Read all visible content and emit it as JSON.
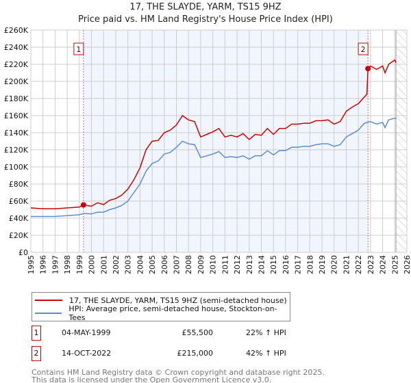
{
  "chart_data": {
    "type": "line",
    "title": "17, THE SLAYDE, YARM, TS15 9HZ",
    "subtitle": "Price paid vs. HM Land Registry's House Price Index (HPI)",
    "xlabel": "",
    "ylabel": "",
    "xlim": [
      1995,
      2026
    ],
    "ylim": [
      0,
      260000
    ],
    "grid": true,
    "x_ticks": [
      "1995",
      "1996",
      "1997",
      "1998",
      "1999",
      "2000",
      "2001",
      "2002",
      "2003",
      "2004",
      "2005",
      "2006",
      "2007",
      "2008",
      "2009",
      "2010",
      "2011",
      "2012",
      "2013",
      "2014",
      "2015",
      "2016",
      "2017",
      "2018",
      "2019",
      "2020",
      "2021",
      "2022",
      "2023",
      "2024",
      "2025",
      "2026"
    ],
    "y_ticks": [
      {
        "v": 0,
        "label": "£0"
      },
      {
        "v": 20000,
        "label": "£20K"
      },
      {
        "v": 40000,
        "label": "£40K"
      },
      {
        "v": 60000,
        "label": "£60K"
      },
      {
        "v": 80000,
        "label": "£80K"
      },
      {
        "v": 100000,
        "label": "£100K"
      },
      {
        "v": 120000,
        "label": "£120K"
      },
      {
        "v": 140000,
        "label": "£140K"
      },
      {
        "v": 160000,
        "label": "£160K"
      },
      {
        "v": 180000,
        "label": "£180K"
      },
      {
        "v": 200000,
        "label": "£200K"
      },
      {
        "v": 220000,
        "label": "£220K"
      },
      {
        "v": 240000,
        "label": "£240K"
      },
      {
        "v": 260000,
        "label": "£260K"
      }
    ],
    "shaded_range": [
      1999.34,
      2022.79
    ],
    "hatched_range": [
      2025.1,
      2026
    ],
    "series": [
      {
        "name": "17, THE SLAYDE, YARM, TS15 9HZ (semi-detached house)",
        "color": "#cc0000",
        "x": [
          1995,
          1996,
          1997,
          1998,
          1999,
          1999.34,
          2000,
          2000.5,
          2001,
          2001.5,
          2002,
          2002.5,
          2003,
          2003.5,
          2004,
          2004.5,
          2005,
          2005.5,
          2006,
          2006.5,
          2007,
          2007.5,
          2008,
          2008.5,
          2009,
          2009.5,
          2010,
          2010.5,
          2011,
          2011.5,
          2012,
          2012.5,
          2013,
          2013.5,
          2014,
          2014.5,
          2015,
          2015.5,
          2016,
          2016.5,
          2017,
          2017.5,
          2018,
          2018.5,
          2019,
          2019.5,
          2020,
          2020.5,
          2021,
          2021.5,
          2022,
          2022.7,
          2022.79,
          2023,
          2023.5,
          2024,
          2024.2,
          2024.5,
          2025,
          2025.1
        ],
        "y": [
          52000,
          51000,
          51000,
          52000,
          53000,
          55500,
          54000,
          58000,
          56000,
          61000,
          63000,
          67000,
          74000,
          85000,
          99000,
          120000,
          130000,
          131000,
          140000,
          143000,
          149000,
          160000,
          155000,
          153000,
          135000,
          138000,
          141000,
          145000,
          135000,
          137000,
          135000,
          139000,
          132000,
          138000,
          137000,
          145000,
          138000,
          145000,
          145000,
          150000,
          150000,
          151000,
          151000,
          154000,
          154000,
          155000,
          150000,
          153000,
          165000,
          170000,
          174000,
          185000,
          215000,
          218000,
          214000,
          218000,
          210000,
          220000,
          225000,
          222000
        ]
      },
      {
        "name": "HPI: Average price, semi-detached house, Stockton-on-Tees",
        "color": "#5b8dd6",
        "x": [
          1995,
          1996,
          1997,
          1998,
          1999,
          1999.34,
          2000,
          2000.5,
          2001,
          2001.5,
          2002,
          2002.5,
          2003,
          2003.5,
          2004,
          2004.5,
          2005,
          2005.5,
          2006,
          2006.5,
          2007,
          2007.5,
          2008,
          2008.5,
          2009,
          2009.5,
          2010,
          2010.5,
          2011,
          2011.5,
          2012,
          2012.5,
          2013,
          2013.5,
          2014,
          2014.5,
          2015,
          2015.5,
          2016,
          2016.5,
          2017,
          2017.5,
          2018,
          2018.5,
          2019,
          2019.5,
          2020,
          2020.5,
          2021,
          2021.5,
          2022,
          2022.5,
          2023,
          2023.5,
          2024,
          2024.2,
          2024.5,
          2025,
          2025.1
        ],
        "y": [
          42000,
          42000,
          42000,
          43000,
          44000,
          45500,
          45000,
          47000,
          47000,
          50000,
          52000,
          55000,
          60000,
          70000,
          80000,
          95000,
          104000,
          107000,
          115000,
          117000,
          123000,
          130000,
          127000,
          126000,
          111000,
          113000,
          115000,
          118000,
          111000,
          112000,
          111000,
          113000,
          109000,
          113000,
          113000,
          119000,
          114000,
          119000,
          119000,
          123000,
          123000,
          124000,
          124000,
          126000,
          127000,
          127000,
          124000,
          126000,
          135000,
          139000,
          143000,
          151000,
          153000,
          150000,
          152000,
          146000,
          155000,
          157000,
          156000
        ]
      }
    ],
    "annotations": [
      {
        "label": "1",
        "x": 1999.34,
        "y": 55500
      },
      {
        "label": "2",
        "x": 2022.79,
        "y": 215000
      }
    ]
  },
  "legend": {
    "items": [
      {
        "label": "17, THE SLAYDE, YARM, TS15 9HZ (semi-detached house)",
        "color": "#cc0000"
      },
      {
        "label": "HPI: Average price, semi-detached house, Stockton-on-Tees",
        "color": "#5b8dd6"
      }
    ]
  },
  "transactions": [
    {
      "num": "1",
      "date": "04-MAY-1999",
      "price": "£55,500",
      "hpi": "22% ↑ HPI"
    },
    {
      "num": "2",
      "date": "14-OCT-2022",
      "price": "£215,000",
      "hpi": "42% ↑ HPI"
    }
  ],
  "footer": {
    "line1": "Contains HM Land Registry data © Crown copyright and database right 2025.",
    "line2": "This data is licensed under the Open Government Licence v3.0."
  }
}
